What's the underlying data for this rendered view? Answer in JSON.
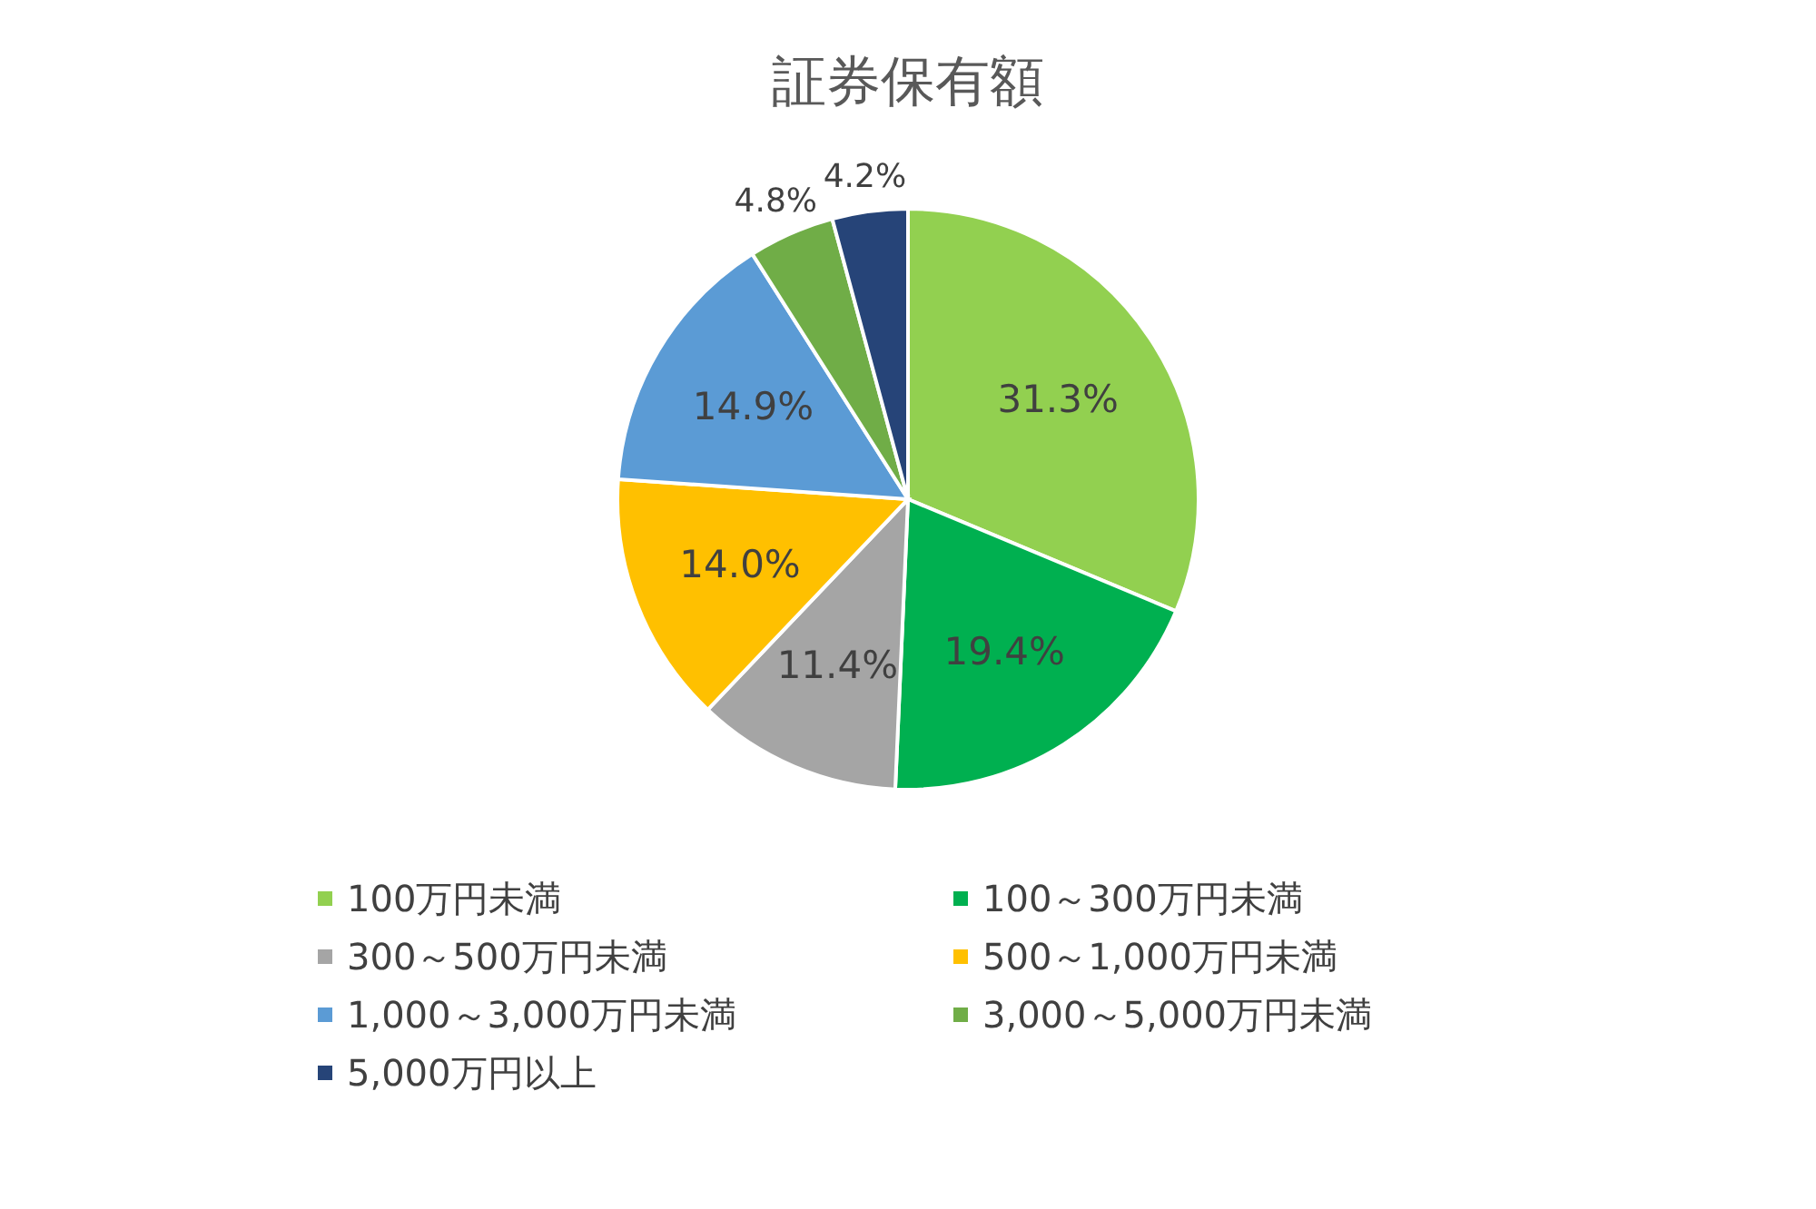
{
  "chart_data": {
    "type": "pie",
    "title": "証券保有額",
    "categories": [
      "100万円未満",
      "100～300万円未満",
      "300～500万円未満",
      "500～1,000万円未満",
      "1,000～3,000万円未満",
      "3,000～5,000万円未満",
      "5,000万円以上"
    ],
    "values": [
      31.3,
      19.4,
      11.4,
      14.0,
      14.9,
      4.8,
      4.2
    ],
    "value_labels": [
      "31.3%",
      "19.4%",
      "11.4%",
      "14.0%",
      "14.9%",
      "4.8%",
      "4.2%"
    ],
    "colors": [
      "#92d050",
      "#00b050",
      "#a5a5a5",
      "#ffc000",
      "#5b9bd5",
      "#70ad47",
      "#264478"
    ],
    "legend": "bottom"
  }
}
